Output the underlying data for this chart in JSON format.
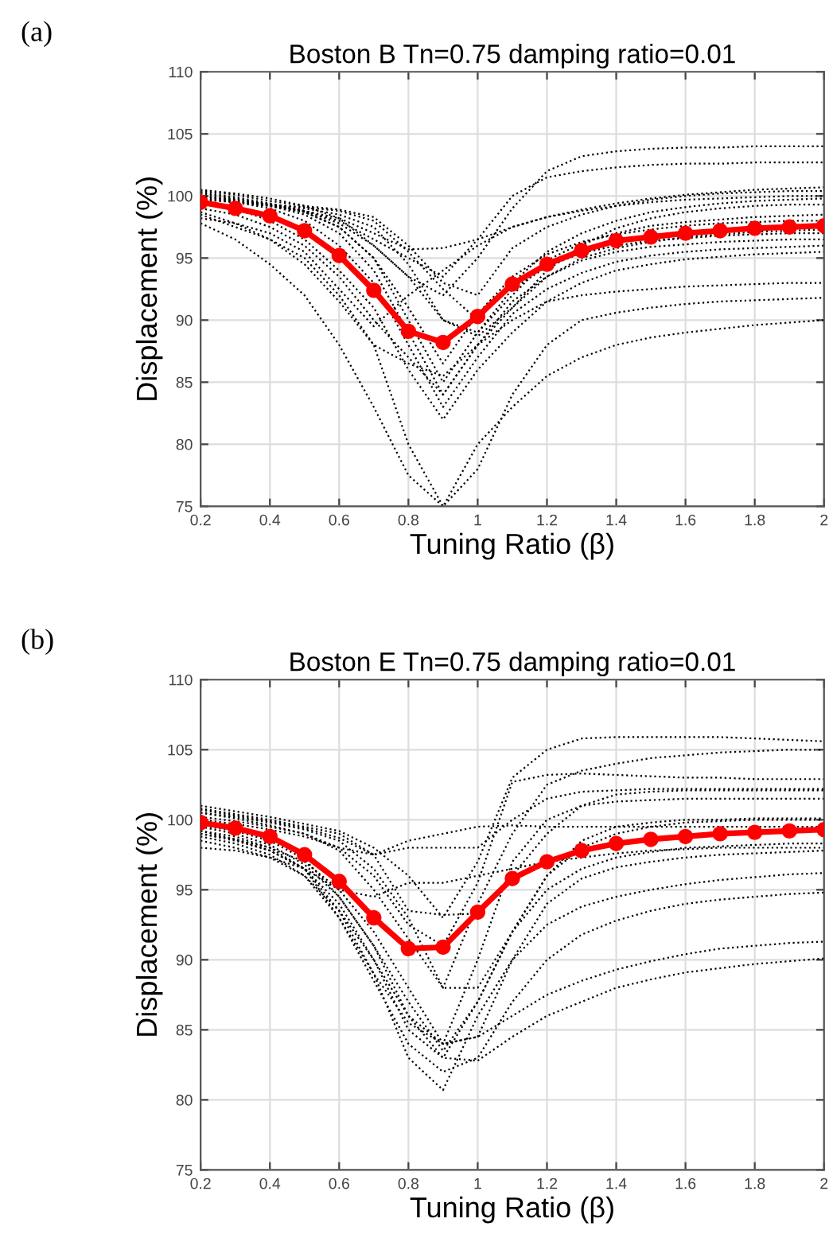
{
  "chart_data": [
    {
      "type": "line",
      "title": "Boston B Tn=0.75 damping ratio=0.01",
      "annotations": [
        "(a)"
      ],
      "xlabel": "Tuning Ratio (β)",
      "ylabel": "Displacement (%)",
      "x": [
        0.2,
        0.3,
        0.4,
        0.5,
        0.6,
        0.7,
        0.8,
        0.9,
        1.0,
        1.1,
        1.2,
        1.3,
        1.4,
        1.5,
        1.6,
        1.7,
        1.8,
        1.9,
        2.0
      ],
      "xlim": [
        0.2,
        2
      ],
      "xticks": [
        0.2,
        0.4,
        0.6,
        0.8,
        1,
        1.2,
        1.4,
        1.6,
        1.8,
        2
      ],
      "ylim": [
        75,
        110
      ],
      "yticks": [
        75,
        80,
        85,
        90,
        95,
        100,
        105,
        110
      ],
      "grid": true,
      "legend": false,
      "series": [
        {
          "color": "#000000",
          "line_style": "dotted",
          "marker": "none",
          "values": [
            100.5,
            100.2,
            99.8,
            99.2,
            98.2,
            96,
            93.5,
            92,
            95,
            99,
            102,
            103.2,
            103.6,
            103.8,
            103.9,
            103.9,
            104,
            104,
            104
          ]
        },
        {
          "color": "#000000",
          "line_style": "dotted",
          "marker": "none",
          "values": [
            100,
            99.7,
            99.3,
            98.8,
            98,
            96.5,
            95,
            93.5,
            96.5,
            100,
            101.5,
            102,
            102.3,
            102.5,
            102.6,
            102.6,
            102.7,
            102.7,
            102.7
          ]
        },
        {
          "color": "#000000",
          "line_style": "dotted",
          "marker": "none",
          "values": [
            99.8,
            99.5,
            99.2,
            98.8,
            98.2,
            97,
            95.7,
            95.8,
            96.5,
            97.5,
            98.3,
            98.9,
            99.4,
            99.8,
            100.1,
            100.3,
            100.5,
            100.6,
            100.7
          ]
        },
        {
          "color": "#000000",
          "line_style": "dotted",
          "marker": "none",
          "values": [
            97.8,
            96.5,
            94.5,
            92,
            88,
            83,
            77.5,
            75,
            80,
            83,
            85.5,
            87,
            88,
            88.6,
            89,
            89.3,
            89.6,
            89.8,
            90
          ]
        },
        {
          "color": "#000000",
          "line_style": "dotted",
          "marker": "none",
          "values": [
            98.5,
            97.5,
            96.5,
            95,
            92,
            88,
            80,
            75,
            78,
            84,
            88,
            90,
            90.6,
            91,
            91.3,
            91.5,
            91.6,
            91.7,
            91.8
          ]
        },
        {
          "color": "#000000",
          "line_style": "dotted",
          "marker": "none",
          "values": [
            99,
            98.5,
            97.5,
            96,
            93.5,
            90,
            87,
            84,
            88,
            90,
            91.5,
            92,
            92.3,
            92.5,
            92.7,
            92.8,
            92.9,
            93,
            93
          ]
        },
        {
          "color": "#000000",
          "line_style": "dotted",
          "marker": "none",
          "values": [
            99.5,
            99,
            98,
            96.5,
            94,
            91,
            86,
            82,
            86,
            89,
            91.5,
            93,
            94,
            94.5,
            94.9,
            95.1,
            95.3,
            95.4,
            95.5
          ]
        },
        {
          "color": "#000000",
          "line_style": "dotted",
          "marker": "none",
          "values": [
            99.8,
            99.5,
            99,
            98,
            96,
            93,
            88,
            83,
            87,
            90.5,
            92.5,
            93.8,
            94.7,
            95.2,
            95.5,
            95.7,
            95.8,
            95.9,
            96
          ]
        },
        {
          "color": "#000000",
          "line_style": "dotted",
          "marker": "none",
          "values": [
            100,
            99.6,
            99.2,
            98.5,
            97,
            94,
            89,
            84,
            88,
            91.5,
            93.5,
            94.8,
            95.5,
            95.9,
            96.1,
            96.3,
            96.4,
            96.5,
            96.5
          ]
        },
        {
          "color": "#000000",
          "line_style": "dotted",
          "marker": "none",
          "values": [
            100.2,
            99.8,
            99.3,
            98.7,
            97.5,
            95,
            90,
            85,
            89,
            92.5,
            94.3,
            95.4,
            96,
            96.4,
            96.6,
            96.8,
            96.9,
            97,
            97
          ]
        },
        {
          "color": "#000000",
          "line_style": "dotted",
          "marker": "none",
          "values": [
            99.7,
            99.5,
            99.2,
            98.7,
            97.5,
            95,
            91,
            86.5,
            90.5,
            93.5,
            95.3,
            96.3,
            96.9,
            97.3,
            97.6,
            97.8,
            97.9,
            98,
            98
          ]
        },
        {
          "color": "#000000",
          "line_style": "dotted",
          "marker": "none",
          "values": [
            100.3,
            99.9,
            99.4,
            98.8,
            97.8,
            96,
            93.5,
            90,
            89,
            92,
            94.8,
            96.2,
            97,
            97.6,
            97.9,
            98.1,
            98.3,
            98.4,
            98.5
          ]
        },
        {
          "color": "#000000",
          "line_style": "dotted",
          "marker": "none",
          "values": [
            100,
            99.7,
            99.3,
            99,
            98.5,
            97.5,
            94.5,
            90,
            88.7,
            91,
            94,
            96,
            97.4,
            98.2,
            98.7,
            99,
            99.2,
            99.3,
            99.3
          ]
        },
        {
          "color": "#000000",
          "line_style": "dotted",
          "marker": "none",
          "values": [
            99.9,
            99.6,
            99.3,
            99.1,
            98.8,
            98,
            95.5,
            92.5,
            90,
            93,
            95.5,
            97,
            98,
            98.7,
            99.1,
            99.4,
            99.6,
            99.7,
            99.8
          ]
        },
        {
          "color": "#000000",
          "line_style": "dotted",
          "marker": "none",
          "values": [
            100.4,
            100.1,
            99.6,
            99.2,
            98.9,
            98.3,
            96,
            93,
            92,
            95.8,
            97.5,
            98.5,
            99.2,
            99.7,
            100,
            100.2,
            100.3,
            100.4,
            100.4
          ]
        },
        {
          "color": "#000000",
          "line_style": "dotted",
          "marker": "none",
          "values": [
            98.7,
            97.8,
            96.5,
            94.5,
            91.5,
            88,
            86.5,
            85.5,
            88,
            91,
            93.5,
            95,
            95.8,
            96.3,
            96.7,
            96.9,
            97.1,
            97.2,
            97.3
          ]
        },
        {
          "color": "#000000",
          "line_style": "dotted",
          "marker": "none",
          "values": [
            98.2,
            97.8,
            97,
            95.5,
            92.5,
            89.5,
            92,
            94,
            96,
            97.5,
            98.3,
            98.8,
            99.2,
            99.5,
            99.7,
            99.8,
            99.9,
            100,
            100
          ]
        },
        {
          "color": "#ff0000",
          "line_style": "solid",
          "marker": "circle",
          "values": [
            99.5,
            99.0,
            98.4,
            97.2,
            95.2,
            92.4,
            89.1,
            88.2,
            90.3,
            92.9,
            94.5,
            95.6,
            96.4,
            96.7,
            97.0,
            97.2,
            97.4,
            97.5,
            97.6
          ]
        }
      ]
    },
    {
      "type": "line",
      "title": "Boston E Tn=0.75 damping ratio=0.01",
      "annotations": [
        "(b)"
      ],
      "xlabel": "Tuning Ratio (β)",
      "ylabel": "Displacement (%)",
      "x": [
        0.2,
        0.3,
        0.4,
        0.5,
        0.6,
        0.7,
        0.8,
        0.9,
        1.0,
        1.1,
        1.2,
        1.3,
        1.4,
        1.5,
        1.6,
        1.7,
        1.8,
        1.9,
        2.0
      ],
      "xlim": [
        0.2,
        2
      ],
      "xticks": [
        0.2,
        0.4,
        0.6,
        0.8,
        1,
        1.2,
        1.4,
        1.6,
        1.8,
        2
      ],
      "ylim": [
        75,
        110
      ],
      "yticks": [
        75,
        80,
        85,
        90,
        95,
        100,
        105,
        110
      ],
      "grid": true,
      "legend": false,
      "series": [
        {
          "color": "#000000",
          "line_style": "dotted",
          "marker": "none",
          "values": [
            101,
            100.6,
            100.2,
            99.7,
            99.2,
            98,
            96,
            93,
            97,
            103,
            105,
            105.8,
            105.9,
            105.9,
            105.9,
            105.9,
            105.8,
            105.7,
            105.6
          ]
        },
        {
          "color": "#000000",
          "line_style": "dotted",
          "marker": "none",
          "values": [
            100.5,
            100.2,
            99.8,
            99.3,
            98.5,
            96.5,
            93,
            88,
            94,
            99,
            102.5,
            103.5,
            104,
            104.4,
            104.6,
            104.8,
            104.9,
            105,
            105
          ]
        },
        {
          "color": "#000000",
          "line_style": "dotted",
          "marker": "none",
          "values": [
            100.2,
            99.9,
            99.5,
            99,
            98,
            96,
            92.5,
            91,
            95.5,
            102.7,
            103.2,
            103.3,
            103.2,
            103.1,
            103,
            103,
            102.9,
            102.9,
            102.9
          ]
        },
        {
          "color": "#000000",
          "line_style": "dotted",
          "marker": "none",
          "values": [
            100.8,
            100.4,
            100,
            99.5,
            99,
            97.5,
            98,
            98,
            98,
            100,
            101.5,
            102,
            102.1,
            102.2,
            102.2,
            102.2,
            102.2,
            102.2,
            102.2
          ]
        },
        {
          "color": "#000000",
          "line_style": "dotted",
          "marker": "none",
          "values": [
            99,
            98.6,
            98,
            97,
            95,
            92,
            88,
            84,
            90,
            97,
            100,
            101,
            101.3,
            101.4,
            101.5,
            101.5,
            101.5,
            101.5,
            101.5
          ]
        },
        {
          "color": "#000000",
          "line_style": "dotted",
          "marker": "none",
          "values": [
            99.5,
            99,
            98.2,
            96.8,
            94.5,
            91,
            87,
            83.5,
            87,
            92,
            96,
            98,
            99,
            99.5,
            99.8,
            99.9,
            100,
            100,
            100
          ]
        },
        {
          "color": "#000000",
          "line_style": "dotted",
          "marker": "none",
          "values": [
            100,
            99.7,
            99.3,
            98.8,
            98,
            97.5,
            98.5,
            99,
            99.5,
            99.6,
            99.5,
            99.5,
            99.5,
            99.5,
            99.5,
            99.5,
            99.5,
            99.5,
            99.5
          ]
        },
        {
          "color": "#000000",
          "line_style": "dotted",
          "marker": "none",
          "values": [
            99.2,
            98.6,
            97.8,
            96.5,
            94,
            90,
            85,
            83,
            87,
            92,
            95,
            96.5,
            97.3,
            97.7,
            98,
            98.1,
            98.2,
            98.3,
            98.3
          ]
        },
        {
          "color": "#000000",
          "line_style": "dotted",
          "marker": "none",
          "values": [
            98,
            97.8,
            97.3,
            96.5,
            95,
            94.5,
            95.5,
            95.5,
            96,
            96.5,
            97,
            97.3,
            97.6,
            97.8,
            97.9,
            98,
            98,
            98,
            98
          ]
        },
        {
          "color": "#000000",
          "line_style": "dotted",
          "marker": "none",
          "values": [
            99.6,
            99.2,
            98.5,
            97.2,
            94.5,
            91,
            86,
            84,
            84.5,
            90,
            94,
            95.8,
            96.6,
            97,
            97.3,
            97.5,
            97.6,
            97.7,
            97.8
          ]
        },
        {
          "color": "#000000",
          "line_style": "dotted",
          "marker": "none",
          "values": [
            99,
            98.5,
            97.8,
            96.5,
            93.5,
            89,
            83,
            80.7,
            86,
            90,
            92.5,
            93.8,
            94.5,
            95,
            95.4,
            95.7,
            95.9,
            96.1,
            96.2
          ]
        },
        {
          "color": "#000000",
          "line_style": "dotted",
          "marker": "none",
          "values": [
            98.8,
            98.3,
            97.5,
            96,
            93,
            88.5,
            84,
            82,
            83,
            87,
            90,
            91.8,
            92.8,
            93.5,
            94,
            94.3,
            94.5,
            94.7,
            94.8
          ]
        },
        {
          "color": "#000000",
          "line_style": "dotted",
          "marker": "none",
          "values": [
            99.2,
            98.8,
            98,
            96.5,
            93,
            89,
            85.5,
            84,
            84.5,
            86,
            87.5,
            88.5,
            89.3,
            89.9,
            90.4,
            90.8,
            91,
            91.2,
            91.3
          ]
        },
        {
          "color": "#000000",
          "line_style": "dotted",
          "marker": "none",
          "values": [
            98.5,
            98,
            97.3,
            96,
            93.5,
            90,
            86,
            83,
            82.8,
            84.5,
            86,
            87,
            88,
            88.6,
            89.1,
            89.4,
            89.7,
            89.9,
            90.1
          ]
        },
        {
          "color": "#000000",
          "line_style": "dotted",
          "marker": "none",
          "values": [
            100.5,
            100.1,
            99.6,
            99,
            97.8,
            95,
            91.5,
            88,
            88,
            92,
            96,
            98.5,
            99.5,
            99.8,
            100,
            100,
            100.1,
            100.1,
            100.1
          ]
        },
        {
          "color": "#000000",
          "line_style": "dotted",
          "marker": "none",
          "values": [
            100.7,
            100.3,
            99.9,
            99.4,
            98.7,
            97.5,
            93.5,
            93.2,
            93.3,
            96,
            99,
            101,
            101.8,
            102,
            102.1,
            102.1,
            102.1,
            102.1,
            102.1
          ]
        },
        {
          "color": "#ff0000",
          "line_style": "solid",
          "marker": "circle",
          "values": [
            99.8,
            99.4,
            98.8,
            97.5,
            95.6,
            93.0,
            90.8,
            90.9,
            93.4,
            95.8,
            97.0,
            97.8,
            98.3,
            98.6,
            98.8,
            99.0,
            99.1,
            99.2,
            99.3
          ]
        }
      ]
    }
  ]
}
